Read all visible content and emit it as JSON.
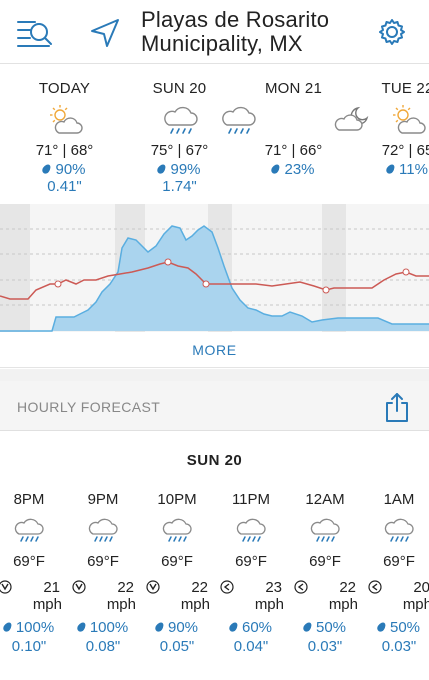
{
  "header": {
    "city_line1": "Playas de Rosarito",
    "city_line2": "Municipality, MX"
  },
  "days": [
    {
      "name": "TODAY",
      "icon": "partly-cloudy-icon",
      "temps": "71° | 68°",
      "precip": "90%",
      "amount": "0.41\""
    },
    {
      "name": "SUN 20",
      "icon": "rain-icon",
      "temps": "75° | 67°",
      "precip": "99%",
      "amount": "1.74\""
    },
    {
      "name": "MON 21",
      "icon": "partly-cloudy-icon",
      "temps": "71° | 66°",
      "precip": "23%",
      "amount": ""
    },
    {
      "name": "TUE 22",
      "icon": "partly-cloudy-icon",
      "temps": "72° | 65",
      "precip": "11%",
      "amount": ""
    }
  ],
  "graph": {
    "more_label": "MORE"
  },
  "hourly": {
    "title": "HOURLY FORECAST",
    "day_label": "SUN 20",
    "items": [
      {
        "time": "8PM",
        "temp": "69°F",
        "wind": "21",
        "unit": "mph",
        "precip": "100%",
        "amount": "0.10\""
      },
      {
        "time": "9PM",
        "temp": "69°F",
        "wind": "22",
        "unit": "mph",
        "precip": "100%",
        "amount": "0.08\""
      },
      {
        "time": "10PM",
        "temp": "69°F",
        "wind": "22",
        "unit": "mph",
        "precip": "90%",
        "amount": "0.05\""
      },
      {
        "time": "11PM",
        "temp": "69°F",
        "wind": "23",
        "unit": "mph",
        "precip": "60%",
        "amount": "0.04\""
      },
      {
        "time": "12AM",
        "temp": "69°F",
        "wind": "22",
        "unit": "mph",
        "precip": "50%",
        "amount": "0.03\""
      },
      {
        "time": "1AM",
        "temp": "69°F",
        "wind": "20",
        "unit": "mph",
        "precip": "50%",
        "amount": "0.03\""
      }
    ]
  },
  "colors": {
    "accent": "#2a7ab8",
    "temp_line": "#cc5a55",
    "precip_fill": "#aad4ee",
    "precip_line": "#5aaee0",
    "sun": "#f0a83a"
  }
}
